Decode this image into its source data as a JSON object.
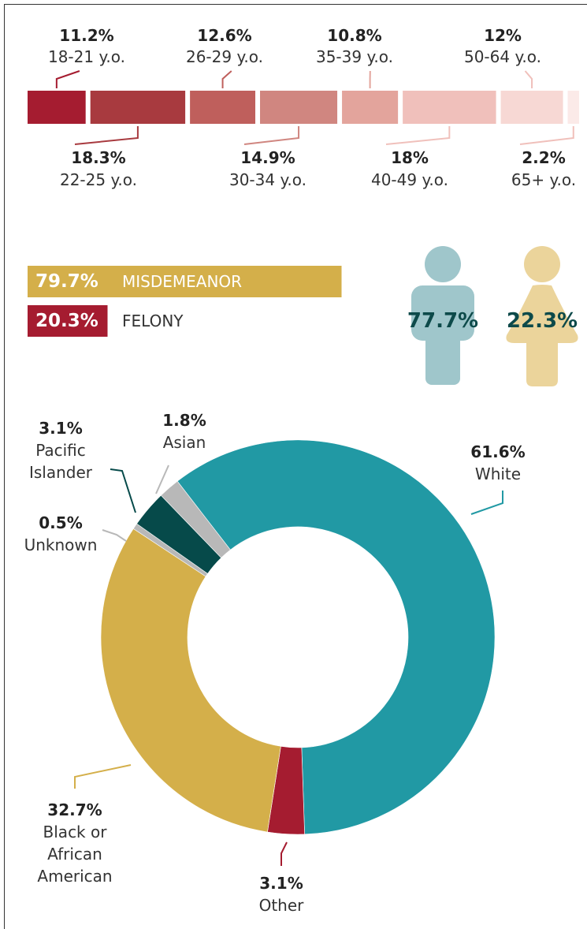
{
  "chart_data": [
    {
      "type": "stacked_bar",
      "categories": [
        "18-21 y.o.",
        "22-25 y.o.",
        "26-29 y.o.",
        "30-34 y.o.",
        "35-39 y.o.",
        "40-49 y.o.",
        "50-64 y.o.",
        "65+ y.o."
      ],
      "values": [
        11.2,
        18.3,
        12.6,
        14.9,
        10.8,
        18,
        12,
        2.2
      ],
      "value_labels": [
        "11.2%",
        "18.3%",
        "12.6%",
        "14.9%",
        "10.8%",
        "18%",
        "12%",
        "2.2%"
      ],
      "colors": [
        "#a51c30",
        "#a83a3f",
        "#bf5f5c",
        "#d08680",
        "#e3a49c",
        "#f0c0bb",
        "#f7d8d4",
        "#fbeae8"
      ]
    },
    {
      "type": "bar",
      "categories": [
        "MISDEMEANOR",
        "FELONY"
      ],
      "values": [
        79.7,
        20.3
      ],
      "value_labels": [
        "79.7%",
        "20.3%"
      ],
      "colors": [
        "#d4af4a",
        "#a51c30"
      ],
      "xlim": [
        0,
        100
      ]
    },
    {
      "type": "pictogram",
      "values": [
        77.7,
        22.3
      ],
      "value_labels": [
        "77.7%",
        "22.3%"
      ],
      "colors": [
        "#9fc6cb",
        "#ebd49b"
      ]
    },
    {
      "type": "pie",
      "categories": [
        "White",
        "Other",
        "Black or African American",
        "Unknown",
        "Pacific Islander",
        "Asian"
      ],
      "values": [
        61.6,
        3.1,
        32.7,
        0.5,
        3.1,
        1.8
      ],
      "value_labels": [
        "61.6%",
        "3.1%",
        "32.7%",
        "0.5%",
        "3.1%",
        "1.8%"
      ],
      "colors": [
        "#2199a4",
        "#a51c30",
        "#d4af4a",
        "#b8b8b8",
        "#064a4a",
        "#b8b8b8"
      ]
    }
  ]
}
